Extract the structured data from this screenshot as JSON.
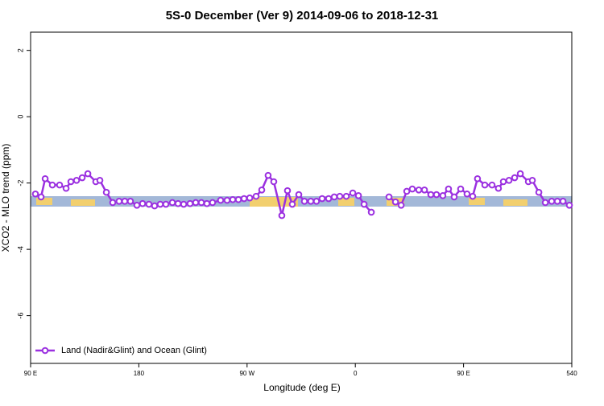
{
  "chart_data": {
    "type": "line",
    "title": "5S-0 December (Ver 9)   2014-09-06 to 2018-12-31",
    "x_label": "Longitude (deg E)",
    "y_label": "XCO2 - MLO trend (ppm)",
    "xlim": [
      90,
      540
    ],
    "ylim": [
      -7.44,
      2.55
    ],
    "xticks": [
      {
        "value": 90,
        "label": "90 E"
      },
      180,
      {
        "value": 270,
        "label": "90 W"
      },
      {
        "value": 360,
        "label": "0"
      },
      {
        "value": 450,
        "label": "90 E"
      },
      540
    ],
    "yticks": [
      2,
      0,
      -2,
      -4,
      -6
    ],
    "legend": "bottom-left",
    "series": [
      {
        "name": "Land (Nadir&Glint) and Ocean (Glint)",
        "color": "#9b30e0",
        "x": [
          94.0,
          98.7,
          102.1,
          108.1,
          114.1,
          119.5,
          123.5,
          128.2,
          132.9,
          137.6,
          144.2,
          147.6,
          153.0,
          158.3,
          163.6,
          168.3,
          173.0,
          178.4,
          183.1,
          188.4,
          193.1,
          197.8,
          202.5,
          207.9,
          212.6,
          217.3,
          222.6,
          227.3,
          232.0,
          236.6,
          241.3,
          248.0,
          253.4,
          258.1,
          262.8,
          267.5,
          272.2,
          277.5,
          282.2,
          287.5,
          292.2,
          298.9,
          303.6,
          307.6,
          313.0,
          317.7,
          323.0,
          327.7,
          332.4,
          337.8,
          342.5,
          347.1,
          352.5,
          357.9,
          362.6,
          367.3,
          373.3,
          380.0,
          388.0,
          393.4,
          398.1,
          402.8,
          407.4,
          412.8,
          417.5,
          422.8,
          427.5,
          432.8,
          437.5,
          442.2,
          447.6,
          452.9,
          457.6,
          461.6,
          467.7,
          473.7,
          479.0,
          483.1,
          487.8,
          492.5,
          497.2,
          503.9,
          507.2,
          512.6,
          518.0,
          523.3,
          528.0,
          532.7,
          538.0
        ],
        "values": [
          -2.33,
          -2.42,
          -1.87,
          -2.06,
          -2.06,
          -2.16,
          -1.96,
          -1.92,
          -1.84,
          -1.72,
          -1.96,
          -1.92,
          -2.28,
          -2.59,
          -2.55,
          -2.55,
          -2.55,
          -2.67,
          -2.62,
          -2.64,
          -2.69,
          -2.64,
          -2.64,
          -2.59,
          -2.62,
          -2.64,
          -2.62,
          -2.59,
          -2.59,
          -2.62,
          -2.59,
          -2.52,
          -2.52,
          -2.5,
          -2.5,
          -2.47,
          -2.45,
          -2.4,
          -2.21,
          -1.77,
          -1.96,
          -2.98,
          -2.23,
          -2.64,
          -2.35,
          -2.55,
          -2.55,
          -2.55,
          -2.47,
          -2.47,
          -2.42,
          -2.4,
          -2.4,
          -2.3,
          -2.38,
          -2.64,
          -2.88,
          null,
          -2.42,
          -2.57,
          -2.67,
          -2.25,
          -2.18,
          -2.21,
          -2.21,
          -2.35,
          -2.35,
          -2.38,
          -2.18,
          -2.42,
          -2.18,
          -2.33,
          -2.4,
          -1.87,
          -2.06,
          -2.06,
          -2.16,
          -1.96,
          -1.92,
          -1.84,
          -1.72,
          -1.96,
          -1.92,
          -2.28,
          -2.59,
          -2.55,
          -2.55,
          -2.55,
          -2.67
        ]
      }
    ]
  }
}
